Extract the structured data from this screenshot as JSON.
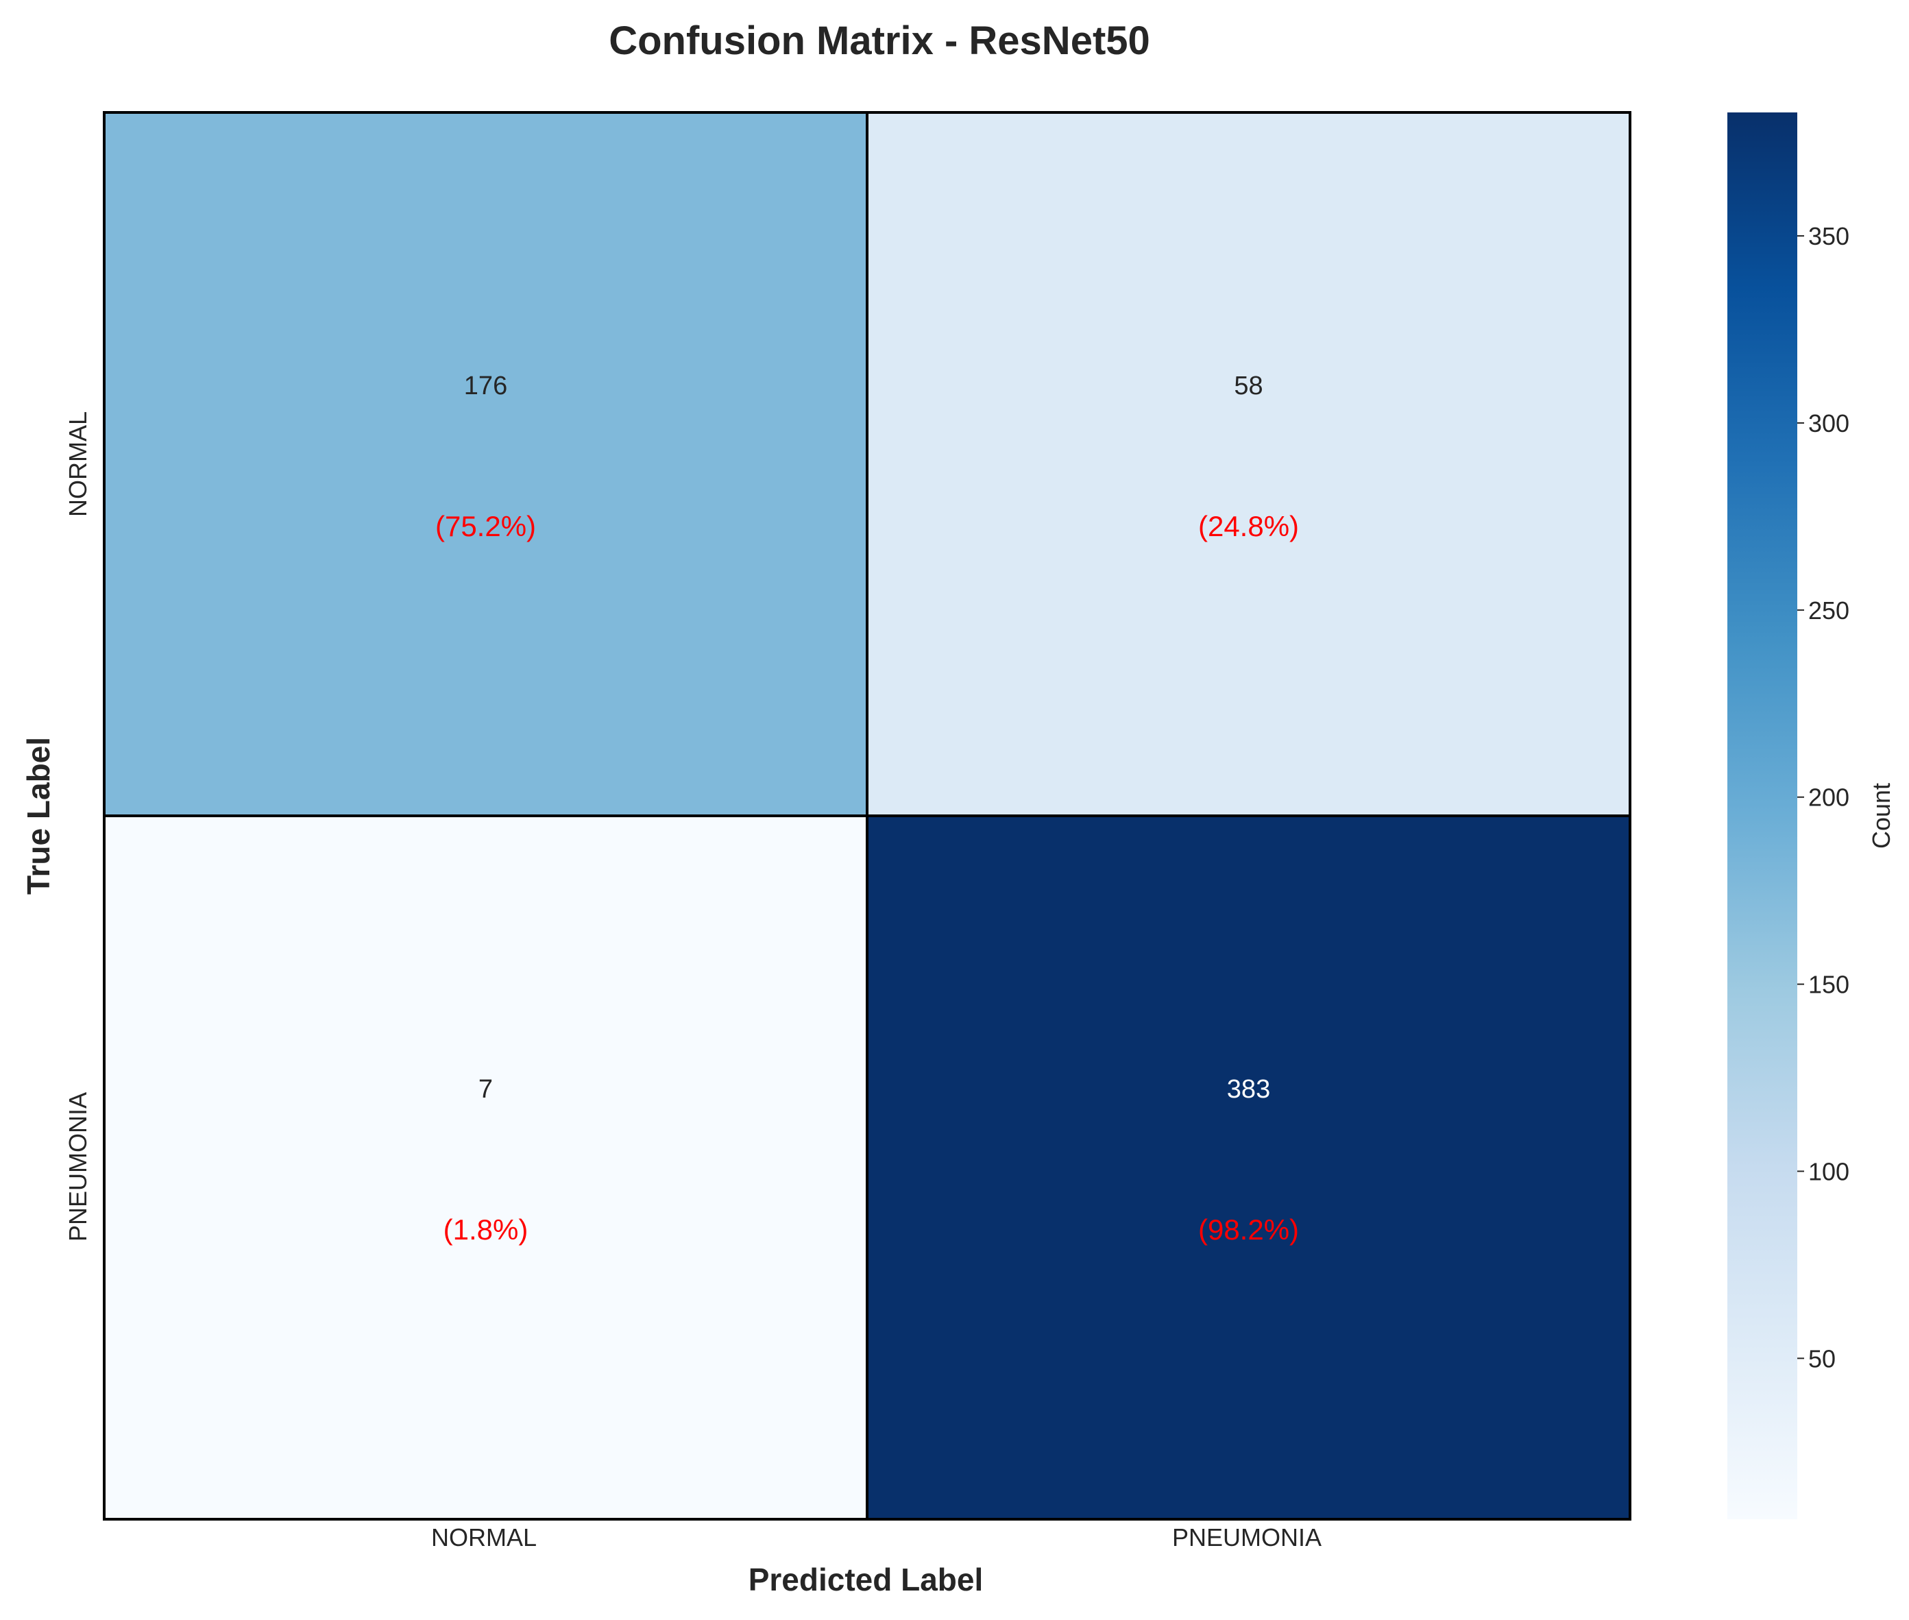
{
  "chart_data": {
    "type": "heatmap",
    "title": "Confusion Matrix - ResNet50",
    "xlabel": "Predicted Label",
    "ylabel": "True Label",
    "x_categories": [
      "NORMAL",
      "PNEUMONIA"
    ],
    "y_categories": [
      "NORMAL",
      "PNEUMONIA"
    ],
    "values": [
      [
        176,
        58
      ],
      [
        7,
        383
      ]
    ],
    "percent_labels": [
      [
        "(75.2%)",
        "(24.8%)"
      ],
      [
        "(1.8%)",
        "(98.2%)"
      ]
    ],
    "colorbar": {
      "label": "Count",
      "range": [
        7,
        383
      ],
      "ticks": [
        50,
        100,
        150,
        200,
        250,
        300,
        350
      ],
      "colormap": "Blues"
    },
    "colors": {
      "percent_text": "#ff0000",
      "cell_border": "#000000",
      "dark_text": "#262626",
      "light_text": "#ffffff"
    }
  }
}
